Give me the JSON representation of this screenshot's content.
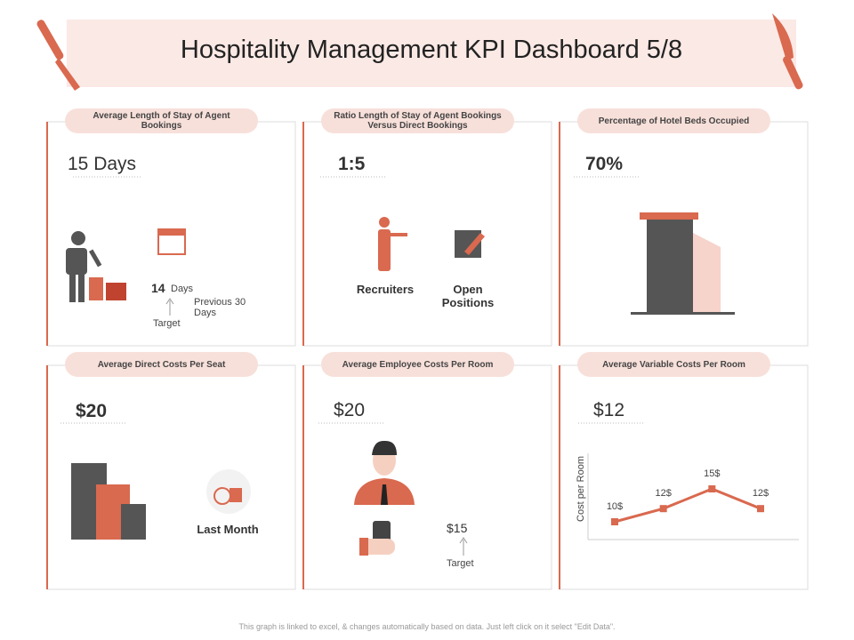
{
  "header": {
    "title": "Hospitality Management KPI Dashboard 5/8"
  },
  "panels": [
    {
      "title": "Average Length of Stay of Agent Bookings",
      "kpi": "15 Days",
      "current": "14",
      "current_unit": "Days",
      "comparison": "Previous 30 Days",
      "target_label": "Target"
    },
    {
      "title": "Ratio Length of Stay of Agent Bookings Versus Direct Bookings",
      "kpi": "1:5",
      "labels": [
        "Recruiters",
        "Open Positions"
      ]
    },
    {
      "title": "Percentage of Hotel Beds Occupied",
      "kpi": "70%"
    },
    {
      "title": "Average Direct Costs Per Seat",
      "kpi": "$20",
      "caption": "Last Month"
    },
    {
      "title": "Average Employee Costs Per Room",
      "kpi": "$20",
      "target_value": "$15",
      "target_label": "Target"
    },
    {
      "title": "Average Variable Costs Per Room",
      "kpi": "$12",
      "chart": {
        "type": "line",
        "y_label": "Cost per Room",
        "values": [
          10,
          12,
          15,
          12
        ],
        "value_labels": [
          "10$",
          "12$",
          "15$",
          "12$"
        ],
        "color": "#d9694f"
      }
    }
  ],
  "footer": "This graph is linked to excel, & changes automatically based on data. Just left click on it select \"Edit Data\"."
}
